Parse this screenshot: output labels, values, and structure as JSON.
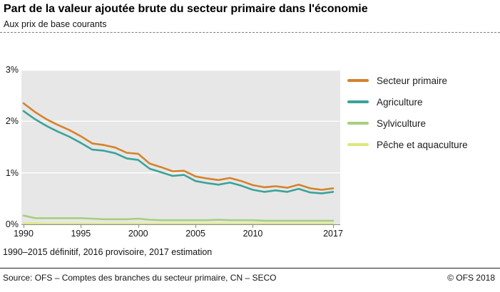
{
  "header": {
    "title": "Part de la valeur ajoutée brute du secteur primaire dans l'économie",
    "subtitle": "Aux prix de base courants"
  },
  "footnote": "1990–2015 définitif, 2016 provisoire, 2017 estimation",
  "footer": {
    "source": "Source: OFS – Comptes des branches du secteur primaire, CN – SECO",
    "copyright": "© OFS  2018"
  },
  "colors": {
    "plot_background": "#e7e7e7",
    "gridline": "#ffffff",
    "axis": "#8a8a8a"
  },
  "chart_data": {
    "type": "line",
    "title": "Part de la valeur ajoutée brute du secteur primaire dans l'économie",
    "subtitle": "Aux prix de base courants",
    "xlabel": "",
    "ylabel": "",
    "ylim": [
      0,
      3
    ],
    "yticks": [
      0,
      1,
      2,
      3
    ],
    "ytick_labels": [
      "0%",
      "1%",
      "2%",
      "3%"
    ],
    "xticks": [
      1990,
      1995,
      2000,
      2005,
      2010,
      2017
    ],
    "grid": true,
    "legend_position": "right",
    "x": [
      1990,
      1991,
      1992,
      1993,
      1994,
      1995,
      1996,
      1997,
      1998,
      1999,
      2000,
      2001,
      2002,
      2003,
      2004,
      2005,
      2006,
      2007,
      2008,
      2009,
      2010,
      2011,
      2012,
      2013,
      2014,
      2015,
      2016,
      2017
    ],
    "series": [
      {
        "name": "Secteur primaire",
        "color": "#d5822d",
        "values": [
          2.35,
          2.18,
          2.04,
          1.93,
          1.83,
          1.71,
          1.57,
          1.54,
          1.49,
          1.39,
          1.37,
          1.18,
          1.11,
          1.03,
          1.04,
          0.93,
          0.89,
          0.86,
          0.9,
          0.84,
          0.76,
          0.72,
          0.74,
          0.71,
          0.77,
          0.7,
          0.67,
          0.7
        ]
      },
      {
        "name": "Agriculture",
        "color": "#3aa39a",
        "values": [
          2.2,
          2.04,
          1.91,
          1.8,
          1.7,
          1.58,
          1.45,
          1.43,
          1.38,
          1.28,
          1.25,
          1.08,
          1.01,
          0.94,
          0.96,
          0.84,
          0.8,
          0.77,
          0.81,
          0.75,
          0.67,
          0.63,
          0.66,
          0.63,
          0.69,
          0.62,
          0.6,
          0.63
        ]
      },
      {
        "name": "Sylviculture",
        "color": "#a6cf7f",
        "values": [
          0.17,
          0.12,
          0.12,
          0.12,
          0.12,
          0.12,
          0.11,
          0.1,
          0.1,
          0.1,
          0.11,
          0.09,
          0.08,
          0.08,
          0.08,
          0.08,
          0.08,
          0.09,
          0.08,
          0.08,
          0.08,
          0.07,
          0.07,
          0.07,
          0.07,
          0.07,
          0.07,
          0.07
        ]
      },
      {
        "name": "Pêche et aquaculture",
        "color": "#dfe77d",
        "values": [
          0.02,
          0.02,
          0.01,
          0.01,
          0.01,
          0.01,
          0.01,
          0.01,
          0.01,
          0.01,
          0.01,
          0.01,
          0.01,
          0.01,
          0.01,
          0.01,
          0.01,
          0.01,
          0.01,
          0.01,
          0.01,
          0.01,
          0.01,
          0.01,
          0.01,
          0.01,
          0.01,
          0.01
        ]
      }
    ]
  }
}
